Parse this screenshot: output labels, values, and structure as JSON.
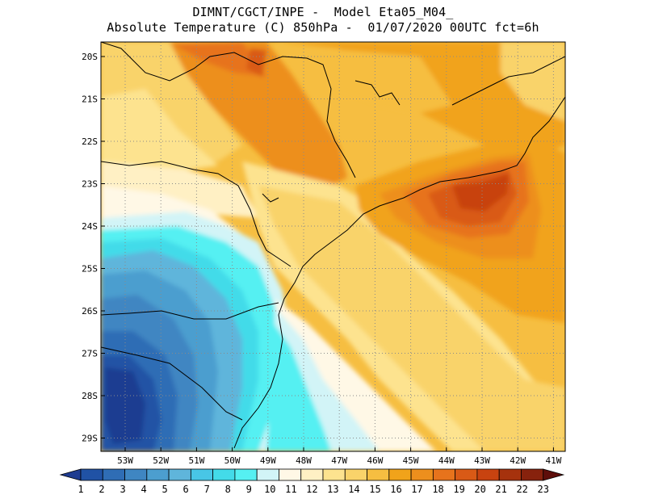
{
  "title": {
    "line1": "DIMNT/CGCT/INPE -  Model Eta05_M04_",
    "line2": "Absolute Temperature (C) 850hPa -  01/07/2020 00UTC fct=6h"
  },
  "map": {
    "lon_ticks": [
      "53W",
      "52W",
      "51W",
      "50W",
      "49W",
      "48W",
      "47W",
      "46W",
      "45W",
      "44W",
      "43W",
      "42W",
      "41W"
    ],
    "lat_ticks": [
      "20S",
      "21S",
      "22S",
      "23S",
      "24S",
      "25S",
      "26S",
      "27S",
      "28S",
      "29S"
    ],
    "grid": "dotted"
  },
  "colorbar": {
    "labels": [
      "1",
      "2",
      "3",
      "4",
      "5",
      "6",
      "7",
      "8",
      "9",
      "10",
      "11",
      "12",
      "13",
      "14",
      "15",
      "16",
      "17",
      "18",
      "19",
      "20",
      "21",
      "22",
      "23"
    ],
    "colors": [
      "#1f3c91",
      "#2052a5",
      "#2f6db5",
      "#3f86c2",
      "#4c9ecf",
      "#5fb5db",
      "#48c6e6",
      "#43dbe9",
      "#55f0f2",
      "#d2f4f7",
      "#fff8e6",
      "#fff0c4",
      "#fde38f",
      "#f9d36a",
      "#f6be41",
      "#f1a31a",
      "#ed8f1d",
      "#e7731c",
      "#d95a16",
      "#c84310",
      "#a6320d",
      "#87220d",
      "#5e0e0a"
    ]
  }
}
